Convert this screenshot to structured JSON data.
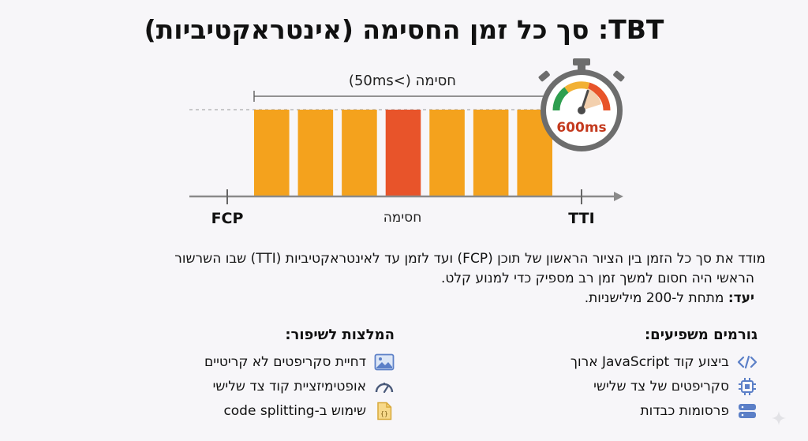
{
  "title": "TBT: סך כל זמן החסימה (אינטראקטיביות)",
  "diagram": {
    "blocking_bracket_label": "חסימה (>50ms)",
    "blocking_label": "חסימה",
    "fcp_label": "FCP",
    "tti_label": "TTI",
    "stopwatch_value": "600ms",
    "bars": [
      {
        "color": "#f4a21d"
      },
      {
        "color": "#f4a21d"
      },
      {
        "color": "#f4a21d"
      },
      {
        "color": "#e8542a"
      },
      {
        "color": "#f4a21d"
      },
      {
        "color": "#f4a21d"
      },
      {
        "color": "#f4a21d"
      }
    ],
    "stopwatch_level": 0.6
  },
  "description": {
    "line1": "מודד את סך כל הזמן בין הציור הראשון של תוכן (FCP) ועד לזמן עד לאינטראקטיביות (TTI) שבו השרשור",
    "line2": "הראשי היה חסום למשך זמן רב מספיק כדי למנוע קלט.",
    "goal_label": "יעד:",
    "goal_text": " מתחת ל-200 מילישניות."
  },
  "factors": {
    "heading": "גורמים משפיעים:",
    "items": [
      {
        "label": "ביצוע קוד JavaScript ארוך",
        "icon": "code-icon"
      },
      {
        "label": "סקריפטים של צד שלישי",
        "icon": "chip-icon"
      },
      {
        "label": "פרסומות כבדות",
        "icon": "server-icon"
      }
    ]
  },
  "recommendations": {
    "heading": "המלצות לשיפור:",
    "items": [
      {
        "label": "דחיית סקריפטים לא קריטיים",
        "icon": "image-icon"
      },
      {
        "label": "אופטימיזציית קוד צד שלישי",
        "icon": "gauge-icon"
      },
      {
        "label": "שימוש ב-code splitting",
        "icon": "file-code-icon"
      }
    ]
  },
  "colors": {
    "bar_orange": "#f4a21d",
    "bar_red": "#e8542a",
    "icon_blue": "#5b7fc7",
    "axis_gray": "#8a8a8a"
  }
}
